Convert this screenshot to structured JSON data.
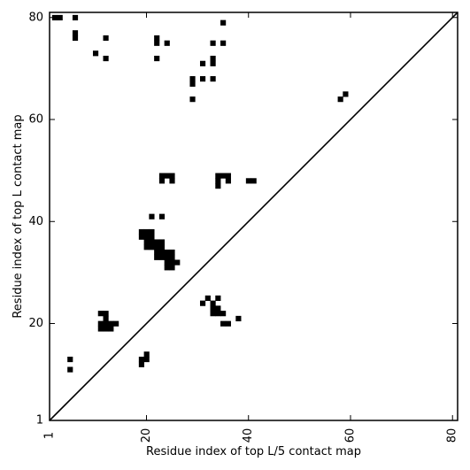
{
  "chart_data": {
    "type": "heatmap",
    "subtype": "contact-map",
    "xlabel": "Residue index of top L/5 contact map",
    "ylabel": "Residue index of top L contact map",
    "xlim": [
      1,
      81
    ],
    "ylim": [
      1,
      81
    ],
    "x_ticks": [
      {
        "value": 1,
        "label": "1"
      },
      {
        "value": 20,
        "label": "20"
      },
      {
        "value": 40,
        "label": "40"
      },
      {
        "value": 60,
        "label": "60"
      },
      {
        "value": 80,
        "label": "80"
      }
    ],
    "y_ticks": [
      {
        "value": 1,
        "label": "1"
      },
      {
        "value": 20,
        "label": "20"
      },
      {
        "value": 40,
        "label": "40"
      },
      {
        "value": 60,
        "label": "60"
      },
      {
        "value": 80,
        "label": "80"
      }
    ],
    "diagonal": {
      "from": [
        1,
        1
      ],
      "to": [
        81,
        81
      ]
    },
    "contact_color": "#000000",
    "contacts": [
      [
        2,
        80
      ],
      [
        3,
        80
      ],
      [
        6,
        80
      ],
      [
        6,
        77
      ],
      [
        6,
        76
      ],
      [
        12,
        76
      ],
      [
        10,
        73
      ],
      [
        12,
        72
      ],
      [
        22,
        76
      ],
      [
        22,
        75
      ],
      [
        24,
        75
      ],
      [
        22,
        72
      ],
      [
        33,
        75
      ],
      [
        35,
        75
      ],
      [
        35,
        79
      ],
      [
        31,
        71
      ],
      [
        33,
        72
      ],
      [
        33,
        71
      ],
      [
        29,
        68
      ],
      [
        29,
        67
      ],
      [
        31,
        68
      ],
      [
        33,
        68
      ],
      [
        29,
        64
      ],
      [
        58,
        64
      ],
      [
        59,
        65
      ],
      [
        23,
        49
      ],
      [
        24,
        49
      ],
      [
        25,
        49
      ],
      [
        23,
        48
      ],
      [
        25,
        48
      ],
      [
        34,
        49
      ],
      [
        35,
        49
      ],
      [
        36,
        49
      ],
      [
        34,
        48
      ],
      [
        36,
        48
      ],
      [
        34,
        47
      ],
      [
        40,
        48
      ],
      [
        41,
        48
      ],
      [
        21,
        41
      ],
      [
        23,
        41
      ],
      [
        19,
        38
      ],
      [
        20,
        38
      ],
      [
        21,
        38
      ],
      [
        19,
        37
      ],
      [
        20,
        37
      ],
      [
        21,
        37
      ],
      [
        20,
        36
      ],
      [
        21,
        36
      ],
      [
        22,
        36
      ],
      [
        23,
        36
      ],
      [
        20,
        35
      ],
      [
        21,
        35
      ],
      [
        22,
        35
      ],
      [
        23,
        35
      ],
      [
        22,
        34
      ],
      [
        23,
        34
      ],
      [
        24,
        34
      ],
      [
        25,
        34
      ],
      [
        22,
        33
      ],
      [
        23,
        33
      ],
      [
        24,
        33
      ],
      [
        25,
        33
      ],
      [
        24,
        32
      ],
      [
        25,
        32
      ],
      [
        26,
        32
      ],
      [
        24,
        31
      ],
      [
        25,
        31
      ],
      [
        32,
        25
      ],
      [
        34,
        25
      ],
      [
        31,
        24
      ],
      [
        33,
        24
      ],
      [
        33,
        23
      ],
      [
        34,
        23
      ],
      [
        33,
        22
      ],
      [
        34,
        22
      ],
      [
        35,
        22
      ],
      [
        38,
        21
      ],
      [
        35,
        20
      ],
      [
        36,
        20
      ],
      [
        11,
        22
      ],
      [
        12,
        22
      ],
      [
        12,
        21
      ],
      [
        11,
        20
      ],
      [
        12,
        20
      ],
      [
        13,
        20
      ],
      [
        14,
        20
      ],
      [
        11,
        19
      ],
      [
        12,
        19
      ],
      [
        13,
        19
      ],
      [
        20,
        14
      ],
      [
        20,
        13
      ],
      [
        19,
        13
      ],
      [
        19,
        12
      ],
      [
        5,
        13
      ],
      [
        5,
        11
      ]
    ]
  }
}
